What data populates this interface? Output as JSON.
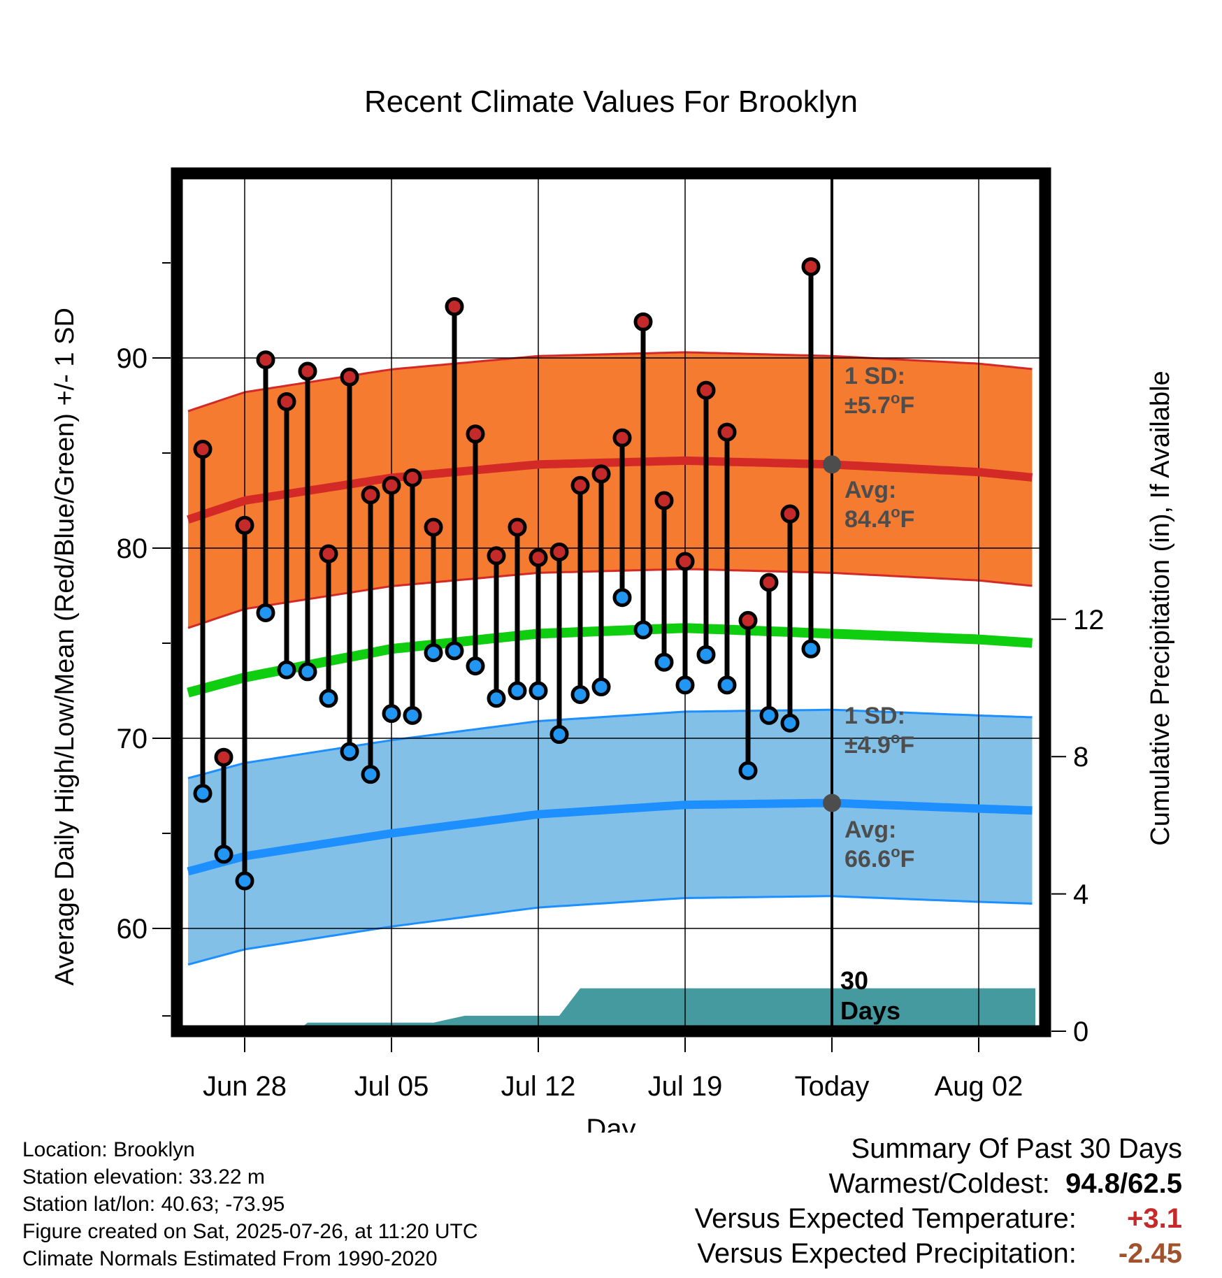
{
  "chart_data": {
    "type": "line",
    "title": "Recent Climate Values For Brooklyn",
    "xlabel": "Day",
    "ylabel": "Average Daily High/Low/Mean (Red/Blue/Green) +/- 1 SD",
    "y2label": "Cumulative Precipitation (in), If Available",
    "ylim": [
      55,
      100
    ],
    "y_ticks": [
      60,
      70,
      80,
      90
    ],
    "y2lim": [
      0,
      30
    ],
    "y2_ticks": [
      0,
      4,
      8,
      12
    ],
    "x_day_range": [
      -27,
      9
    ],
    "x_ticks": [
      {
        "day": 0,
        "label": "Jun 28"
      },
      {
        "day": 7,
        "label": "Jul 05"
      },
      {
        "day": 14,
        "label": "Jul 12"
      },
      {
        "day": 21,
        "label": "Jul 19"
      },
      {
        "day": 28,
        "label": "Today"
      },
      {
        "day": 35,
        "label": "Aug 02"
      }
    ],
    "grid": true,
    "daily_high": [
      [
        -2,
        85.2
      ],
      [
        -1,
        69.0
      ],
      [
        0,
        81.2
      ],
      [
        1,
        89.9
      ],
      [
        2,
        87.7
      ],
      [
        3,
        89.3
      ],
      [
        4,
        79.7
      ],
      [
        5,
        89.0
      ],
      [
        6,
        82.8
      ],
      [
        7,
        83.3
      ],
      [
        8,
        83.7
      ],
      [
        9,
        81.1
      ],
      [
        10,
        92.7
      ],
      [
        11,
        86.0
      ],
      [
        12,
        79.6
      ],
      [
        13,
        81.1
      ],
      [
        14,
        79.5
      ],
      [
        15,
        79.8
      ],
      [
        16,
        83.3
      ],
      [
        17,
        83.9
      ],
      [
        18,
        85.8
      ],
      [
        19,
        91.9
      ],
      [
        20,
        82.5
      ],
      [
        21,
        79.3
      ],
      [
        22,
        88.3
      ],
      [
        23,
        86.1
      ],
      [
        24,
        76.2
      ],
      [
        25,
        78.2
      ],
      [
        26,
        81.8
      ],
      [
        27,
        94.8
      ]
    ],
    "daily_low": [
      [
        -2,
        67.1
      ],
      [
        -1,
        63.9
      ],
      [
        0,
        62.5
      ],
      [
        1,
        76.6
      ],
      [
        2,
        73.6
      ],
      [
        3,
        73.5
      ],
      [
        4,
        72.1
      ],
      [
        5,
        69.3
      ],
      [
        6,
        68.1
      ],
      [
        7,
        71.3
      ],
      [
        8,
        71.2
      ],
      [
        9,
        74.5
      ],
      [
        10,
        74.6
      ],
      [
        11,
        73.8
      ],
      [
        12,
        72.1
      ],
      [
        13,
        72.5
      ],
      [
        14,
        72.5
      ],
      [
        15,
        70.2
      ],
      [
        16,
        72.3
      ],
      [
        17,
        72.7
      ],
      [
        18,
        77.4
      ],
      [
        19,
        75.7
      ],
      [
        20,
        74.0
      ],
      [
        21,
        72.8
      ],
      [
        22,
        74.4
      ],
      [
        23,
        72.8
      ],
      [
        24,
        68.3
      ],
      [
        25,
        71.2
      ],
      [
        26,
        70.8
      ],
      [
        27,
        74.7
      ]
    ],
    "normal_high": [
      [
        -2.7,
        81.5
      ],
      [
        0,
        82.5
      ],
      [
        7,
        83.7
      ],
      [
        14,
        84.4
      ],
      [
        21,
        84.6
      ],
      [
        28,
        84.4
      ],
      [
        35,
        84.0
      ],
      [
        37.7,
        83.7
      ]
    ],
    "normal_high_sd": 5.7,
    "normal_mean": [
      [
        -2.7,
        72.4
      ],
      [
        0,
        73.2
      ],
      [
        7,
        74.7
      ],
      [
        14,
        75.5
      ],
      [
        21,
        75.8
      ],
      [
        28,
        75.5
      ],
      [
        35,
        75.2
      ],
      [
        37.7,
        75.0
      ]
    ],
    "normal_low": [
      [
        -2.7,
        63.0
      ],
      [
        0,
        63.8
      ],
      [
        7,
        65.0
      ],
      [
        14,
        66.0
      ],
      [
        21,
        66.5
      ],
      [
        28,
        66.6
      ],
      [
        35,
        66.3
      ],
      [
        37.7,
        66.2
      ]
    ],
    "normal_low_sd": 4.9,
    "precip_cumulative": [
      [
        -2.7,
        0
      ],
      [
        2.5,
        0
      ],
      [
        3,
        0.25
      ],
      [
        9,
        0.25
      ],
      [
        10.5,
        0.45
      ],
      [
        15,
        0.45
      ],
      [
        16,
        1.25
      ],
      [
        37.7,
        1.25
      ]
    ],
    "today_high_avg": 84.4,
    "today_low_avg": 66.6,
    "annotations": {
      "high_sd_label": "1 SD:",
      "high_sd_value": "±5.7",
      "high_avg_label": "Avg:",
      "high_avg_value": "84.4",
      "low_sd_label": "1 SD:",
      "low_sd_value": "±4.9",
      "low_avg_label": "Avg:",
      "low_avg_value": "66.6",
      "degree_sign": "o",
      "unit": "F",
      "period_value": "30",
      "period_unit": "Days"
    },
    "colors": {
      "high_band": "#f47b30",
      "high_line": "#d42a27",
      "mean_line": "#0fcd0f",
      "low_band": "#82c0e8",
      "low_line": "#1e8fff",
      "precip": "#449a9e",
      "high_dot": "#c52a2a",
      "low_dot": "#2196f3",
      "annotation": "#4d4d4d"
    }
  },
  "footer": {
    "location": "Location: Brooklyn",
    "elevation": "Station elevation: 33.22 m",
    "latlon": "Station lat/lon: 40.63; -73.95",
    "created": "Figure created on Sat, 2025-07-26, at 11:20 UTC",
    "normals": "Climate Normals Estimated From 1990-2020"
  },
  "summary": {
    "title": "Summary Of Past 30 Days",
    "warmest_coldest_label": "Warmest/Coldest:",
    "warmest": "94.8",
    "separator": "/",
    "coldest": "62.5",
    "temp_label": "Versus Expected Temperature:",
    "temp_value": "+3.1",
    "temp_color": "#c52a2a",
    "precip_label": "Versus Expected Precipitation:",
    "precip_value": "-2.45",
    "precip_color": "#a0522d"
  }
}
